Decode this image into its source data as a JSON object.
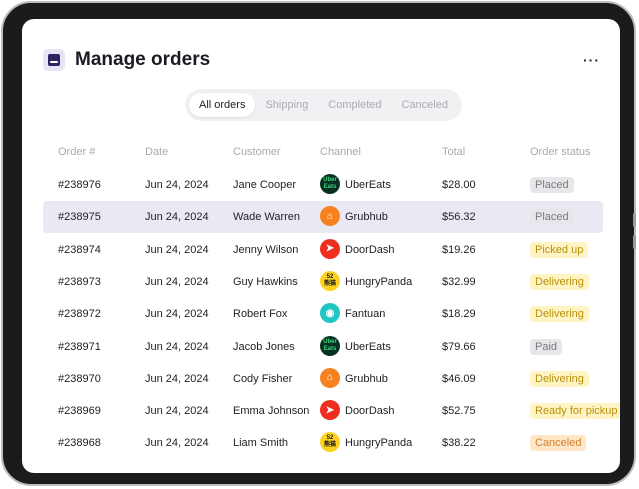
{
  "header": {
    "title": "Manage orders",
    "more_label": "···"
  },
  "tabs": [
    {
      "label": "All orders",
      "active": true
    },
    {
      "label": "Shipping",
      "active": false
    },
    {
      "label": "Completed",
      "active": false
    },
    {
      "label": "Canceled",
      "active": false
    }
  ],
  "columns": [
    "Order #",
    "Date",
    "Customer",
    "Channel",
    "Total",
    "Order status"
  ],
  "channels": {
    "UberEats": {
      "logo_text": "Uber\nEats",
      "bg": "#06301f",
      "fg": "#3fd07f",
      "icon": "ubereats-logo-icon"
    },
    "Grubhub": {
      "logo_text": "⌂",
      "bg": "#f6811f",
      "fg": "#ffffff",
      "icon": "grubhub-logo-icon"
    },
    "DoorDash": {
      "logo_text": "➤",
      "bg": "#ef2e1f",
      "fg": "#ffffff",
      "icon": "doordash-logo-icon"
    },
    "HungryPanda": {
      "logo_text": "52\n熊猫",
      "bg": "#ffd21f",
      "fg": "#1a1a1a",
      "icon": "hungrypanda-logo-icon"
    },
    "Fantuan": {
      "logo_text": "◉",
      "bg": "#1fc7c4",
      "fg": "#ffffff",
      "icon": "fantuan-logo-icon"
    }
  },
  "status_colors": {
    "Placed": {
      "bg": "#e7e7ea",
      "fg": "#7a7a82"
    },
    "Paid": {
      "bg": "#e7e7ea",
      "fg": "#7a7a82"
    },
    "Picked up": {
      "bg": "#fff5c4",
      "fg": "#b9900b"
    },
    "Delivering": {
      "bg": "#fff5c4",
      "fg": "#b9900b"
    },
    "Ready for pickup": {
      "bg": "#fff5c4",
      "fg": "#b9900b"
    },
    "Canceled": {
      "bg": "#ffe6c7",
      "fg": "#d0822a"
    }
  },
  "orders": [
    {
      "id": "#238976",
      "date": "Jun 24, 2024",
      "customer": "Jane Cooper",
      "channel": "UberEats",
      "total": "$28.00",
      "status": "Placed",
      "highlighted": false
    },
    {
      "id": "#238975",
      "date": "Jun 24, 2024",
      "customer": "Wade Warren",
      "channel": "Grubhub",
      "total": "$56.32",
      "status": "Placed",
      "highlighted": true
    },
    {
      "id": "#238974",
      "date": "Jun 24, 2024",
      "customer": "Jenny Wilson",
      "channel": "DoorDash",
      "total": "$19.26",
      "status": "Picked up",
      "highlighted": false
    },
    {
      "id": "#238973",
      "date": "Jun 24, 2024",
      "customer": "Guy Hawkins",
      "channel": "HungryPanda",
      "total": "$32.99",
      "status": "Delivering",
      "highlighted": false
    },
    {
      "id": "#238972",
      "date": "Jun 24, 2024",
      "customer": "Robert Fox",
      "channel": "Fantuan",
      "total": "$18.29",
      "status": "Delivering",
      "highlighted": false
    },
    {
      "id": "#238971",
      "date": "Jun 24, 2024",
      "customer": "Jacob Jones",
      "channel": "UberEats",
      "total": "$79.66",
      "status": "Paid",
      "highlighted": false
    },
    {
      "id": "#238970",
      "date": "Jun 24, 2024",
      "customer": "Cody Fisher",
      "channel": "Grubhub",
      "total": "$46.09",
      "status": "Delivering",
      "highlighted": false
    },
    {
      "id": "#238969",
      "date": "Jun 24, 2024",
      "customer": "Emma Johnson",
      "channel": "DoorDash",
      "total": "$52.75",
      "status": "Ready for pickup",
      "highlighted": false
    },
    {
      "id": "#238968",
      "date": "Jun 24, 2024",
      "customer": "Liam Smith",
      "channel": "HungryPanda",
      "total": "$38.22",
      "status": "Canceled",
      "highlighted": false
    }
  ]
}
